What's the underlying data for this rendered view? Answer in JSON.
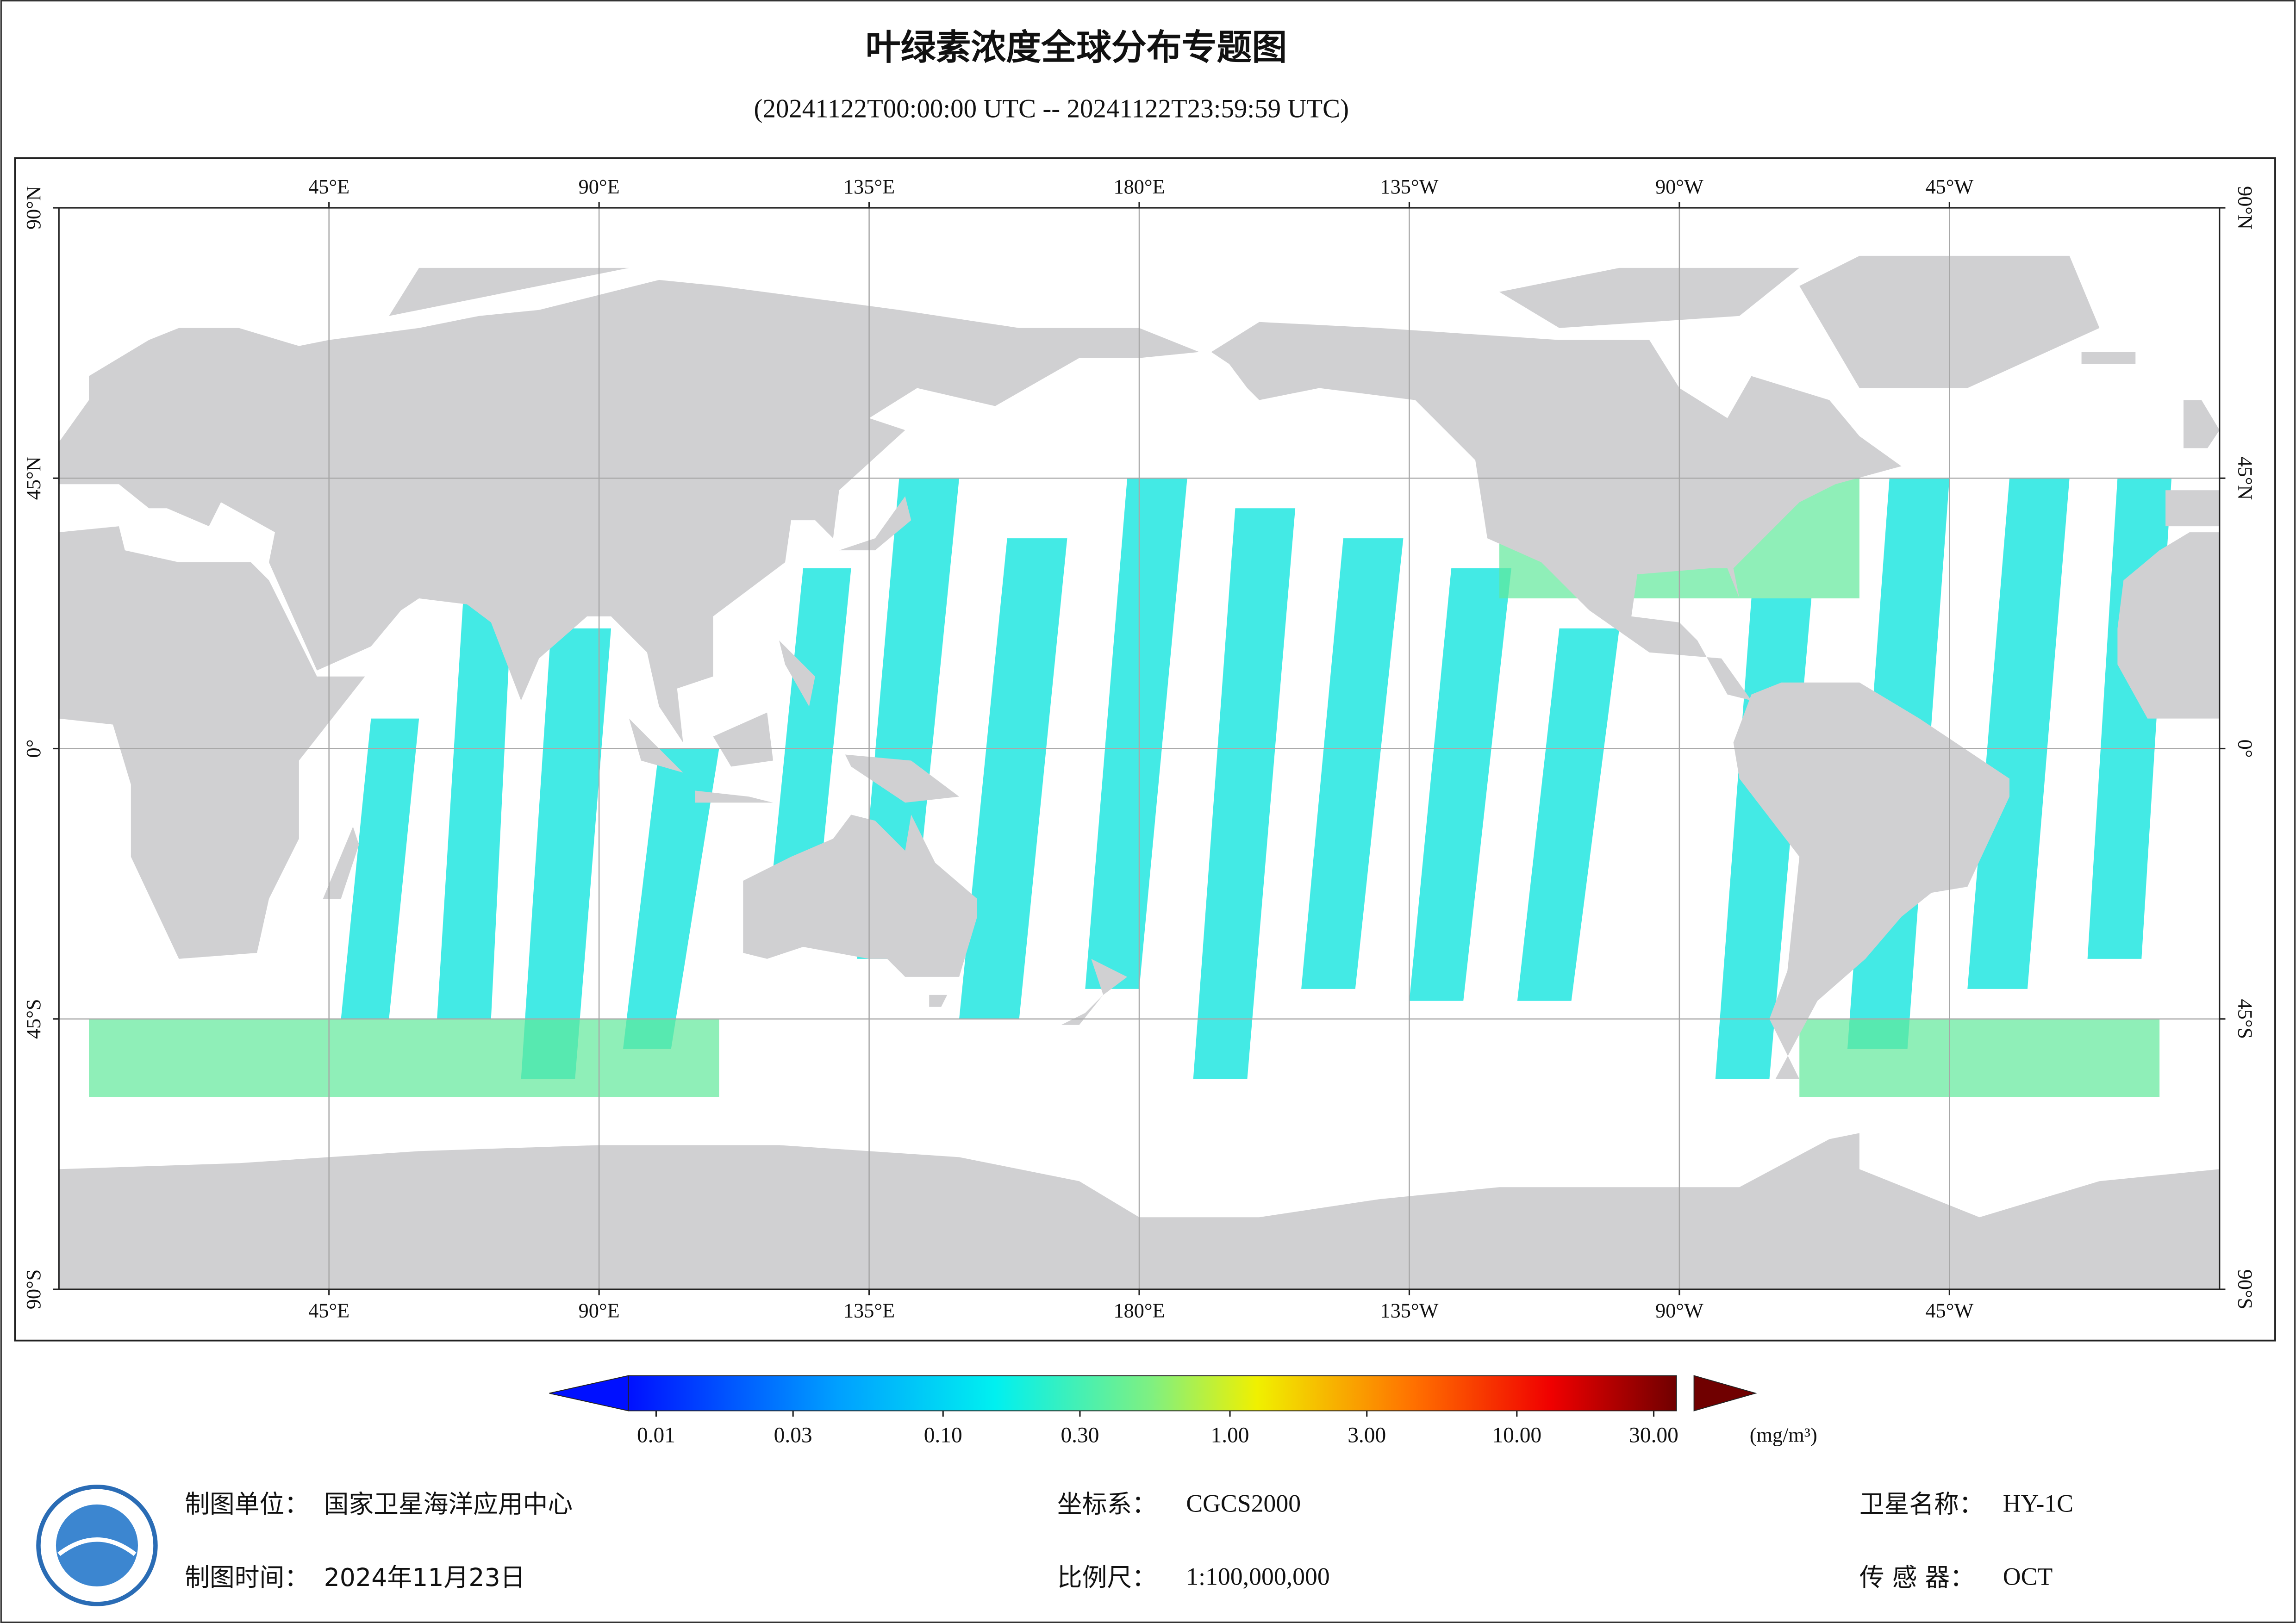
{
  "header": {
    "title": "叶绿素浓度全球分布专题图",
    "subtitle": "(20241122T00:00:00 UTC -- 20241122T23:59:59 UTC)"
  },
  "map": {
    "lon_ticks": [
      {
        "value": 45,
        "label": "45°E"
      },
      {
        "value": 90,
        "label": "90°E"
      },
      {
        "value": 135,
        "label": "135°E"
      },
      {
        "value": 180,
        "label": "180°E"
      },
      {
        "value": 225,
        "label": "135°W"
      },
      {
        "value": 270,
        "label": "90°W"
      },
      {
        "value": 315,
        "label": "45°W"
      }
    ],
    "lat_ticks": [
      {
        "value": 90,
        "label": "90°N"
      },
      {
        "value": 45,
        "label": "45°N"
      },
      {
        "value": 0,
        "label": "0°"
      },
      {
        "value": -45,
        "label": "45°S"
      },
      {
        "value": -90,
        "label": "90°S"
      }
    ],
    "lonlim": [
      0,
      360
    ],
    "latlim": [
      -90,
      90
    ]
  },
  "colorbar": {
    "scale": "log",
    "range": [
      0.008,
      36
    ],
    "unit": "(mg/m³)",
    "ticks": [
      {
        "value": 0.01,
        "label": "0.01"
      },
      {
        "value": 0.03,
        "label": "0.03"
      },
      {
        "value": 0.1,
        "label": "0.10"
      },
      {
        "value": 0.3,
        "label": "0.30"
      },
      {
        "value": 1,
        "label": "1.00"
      },
      {
        "value": 3,
        "label": "3.00"
      },
      {
        "value": 10,
        "label": "10.00"
      },
      {
        "value": 30,
        "label": "30.00"
      }
    ]
  },
  "footer": {
    "unit": {
      "label": "制图单位：",
      "value": "国家卫星海洋应用中心"
    },
    "time": {
      "label": "制图时间：",
      "value": "2024年11月23日"
    },
    "crs": {
      "label": "坐标系：",
      "value": "CGCS2000"
    },
    "scale": {
      "label": "比例尺：",
      "value": "1:100,000,000"
    },
    "satellite": {
      "label": "卫星名称：",
      "value": "HY-1C"
    },
    "sensor": {
      "label": "传 感 器：",
      "value": "OCT"
    }
  }
}
